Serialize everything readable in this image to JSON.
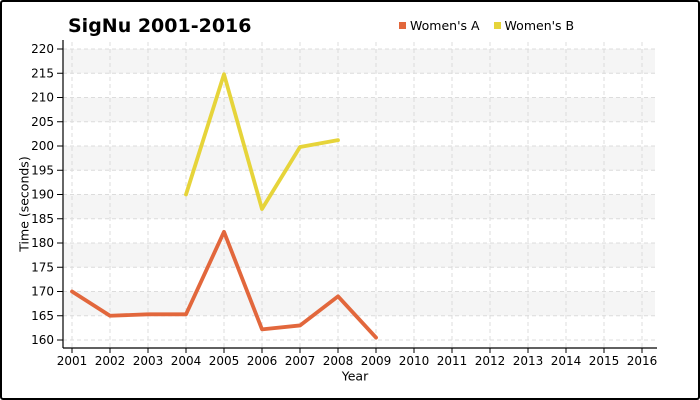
{
  "chart_data": {
    "type": "line",
    "title": "SigNu 2001-2016",
    "xlabel": "Year",
    "ylabel": "Time (seconds)",
    "x_ticks": [
      2001,
      2002,
      2003,
      2004,
      2005,
      2006,
      2007,
      2008,
      2009,
      2010,
      2011,
      2012,
      2013,
      2014,
      2015,
      2016
    ],
    "y_ticks": [
      160,
      165,
      170,
      175,
      180,
      185,
      190,
      195,
      200,
      205,
      210,
      215,
      220
    ],
    "xlim": [
      2001,
      2016.4
    ],
    "ylim": [
      158.4,
      221.5
    ],
    "grid": "dashed",
    "gridline_color": "#dcdcdc",
    "plot_band_color": "#f5f5f5",
    "axis_color": "#000000",
    "legend_position": "top",
    "series": [
      {
        "name": "Women's A",
        "color": "#e2673c",
        "x": [
          2001,
          2002,
          2003,
          2004,
          2005,
          2006,
          2007,
          2008,
          2009
        ],
        "y": [
          170,
          165,
          165.3,
          165.3,
          182.3,
          162.2,
          163,
          169,
          160.5
        ]
      },
      {
        "name": "Women's B",
        "color": "#e6d43a",
        "x": [
          2004,
          2005,
          2006,
          2007,
          2008
        ],
        "y": [
          190,
          214.8,
          187,
          199.8,
          201.2
        ]
      }
    ]
  }
}
